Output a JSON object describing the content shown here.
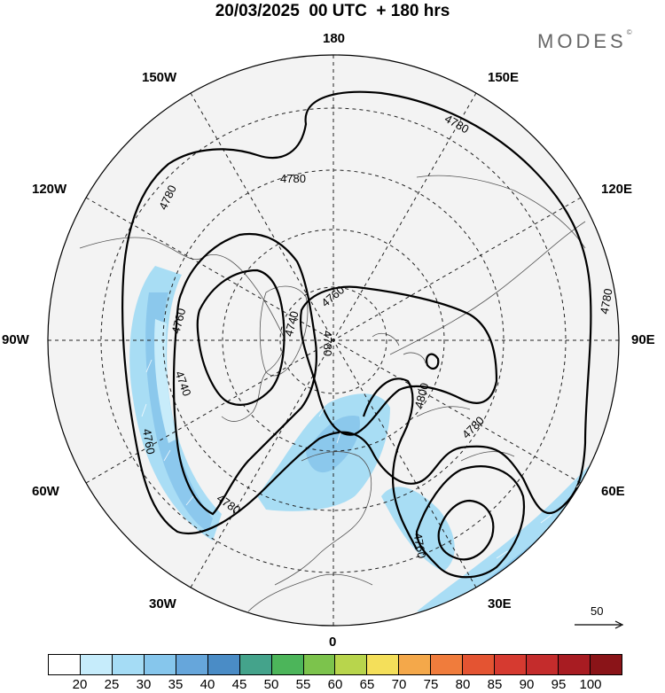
{
  "title": "20/03/2025  00 UTC  + 180 hrs",
  "brand": {
    "text": "MODES",
    "mark": "©"
  },
  "longitude_labels": [
    {
      "key": "180",
      "text": "180"
    },
    {
      "key": "150W",
      "text": "150W"
    },
    {
      "key": "150E",
      "text": "150E"
    },
    {
      "key": "120W",
      "text": "120W"
    },
    {
      "key": "120E",
      "text": "120E"
    },
    {
      "key": "90W",
      "text": "90W"
    },
    {
      "key": "90E",
      "text": "90E"
    },
    {
      "key": "60W",
      "text": "60W"
    },
    {
      "key": "60E",
      "text": "60E"
    },
    {
      "key": "30W",
      "text": "30W"
    },
    {
      "key": "30E",
      "text": "30E"
    },
    {
      "key": "0",
      "text": "0"
    }
  ],
  "contour_labels": [
    "4780",
    "4780",
    "4780",
    "4780",
    "4760",
    "4760",
    "4740",
    "4740",
    "4780",
    "4760",
    "4800",
    "4780",
    "4780",
    "4760"
  ],
  "vector_reference": {
    "value": "50"
  },
  "colorbar": {
    "colors": [
      "#ffffff",
      "#c6ecfb",
      "#a5dcf5",
      "#86c6ec",
      "#66a6db",
      "#4a8cc6",
      "#44a38b",
      "#4cb55a",
      "#7cc34c",
      "#b8d54c",
      "#f4df5a",
      "#f4a84a",
      "#f07c3c",
      "#e45432",
      "#d63a30",
      "#c42c2c",
      "#a81c22",
      "#8a1418"
    ],
    "ticks": [
      "20",
      "25",
      "30",
      "35",
      "40",
      "45",
      "50",
      "55",
      "60",
      "65",
      "70",
      "75",
      "80",
      "85",
      "90",
      "95",
      "100"
    ]
  }
}
